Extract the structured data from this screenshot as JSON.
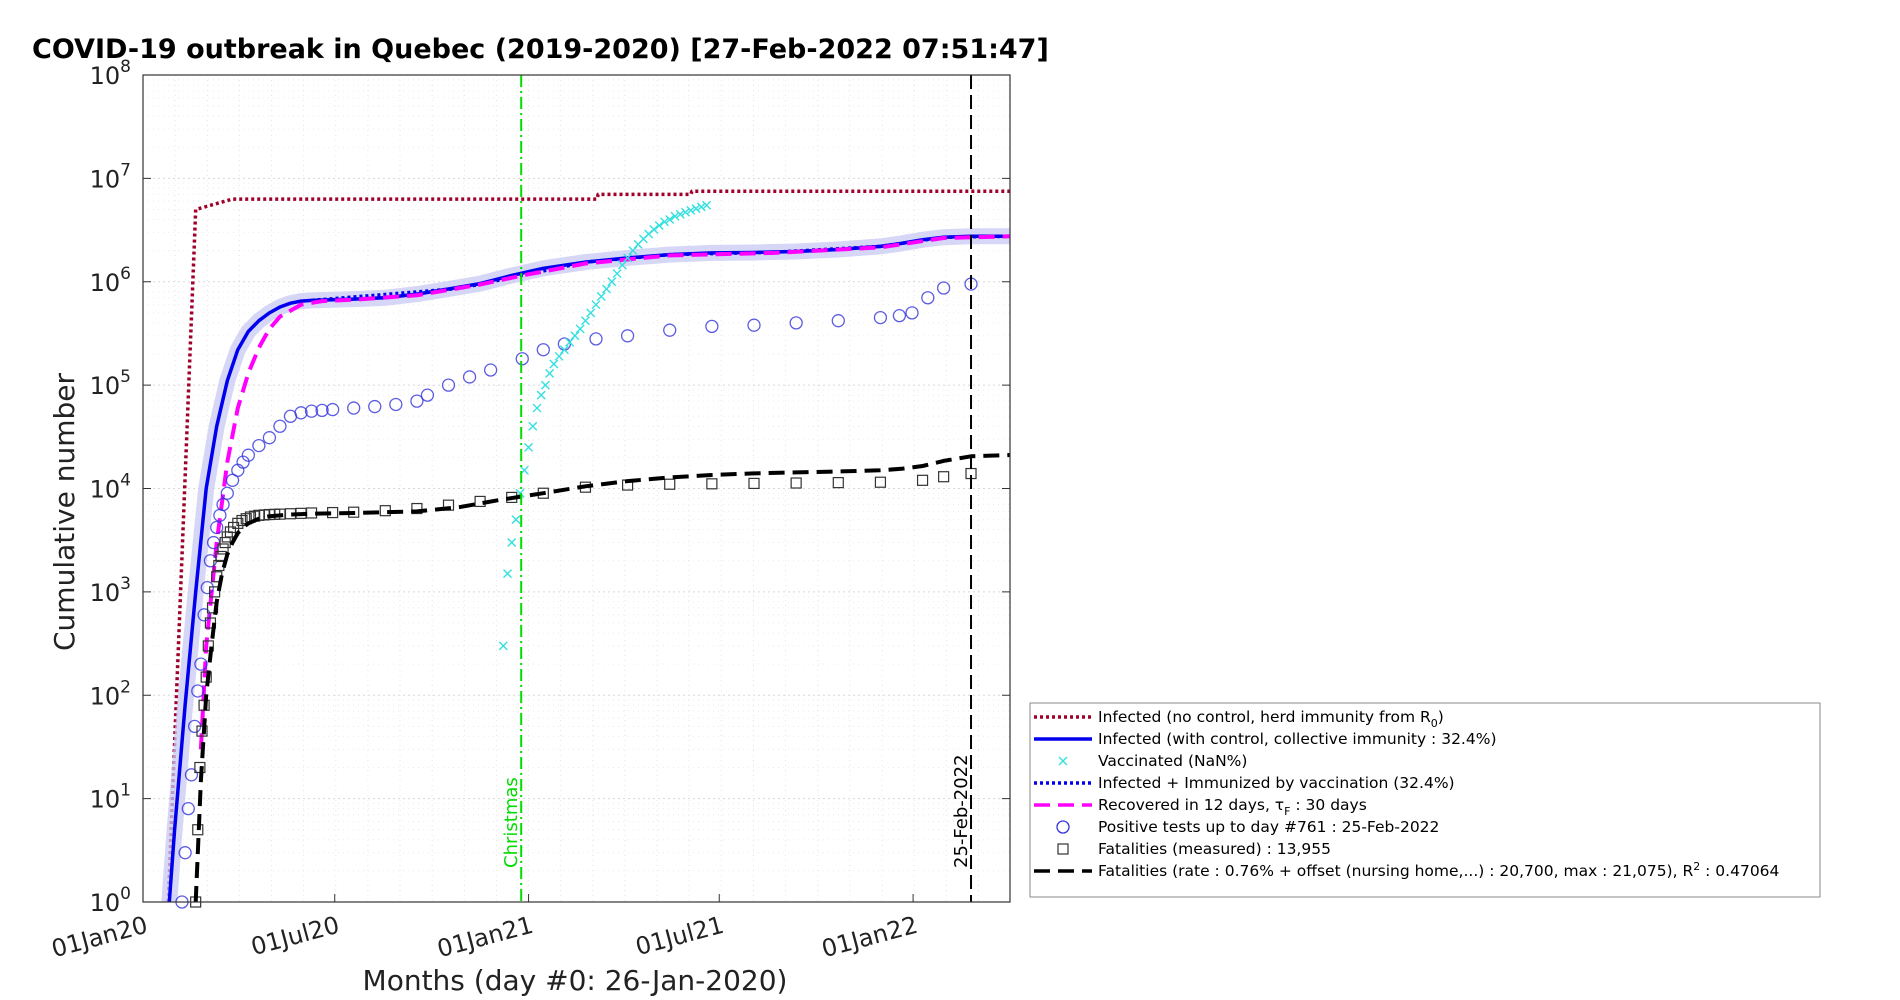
{
  "chart_data": {
    "type": "line",
    "title": "COVID-19 outbreak in Quebec (2019-2020) [27-Feb-2022 07:51:47]",
    "xlabel": "Months (day #0: 26-Jan-2020)",
    "ylabel": "Cumulative number",
    "y_scale": "log",
    "ylim": [
      1,
      100000000
    ],
    "xlim": [
      0,
      823
    ],
    "grid": true,
    "x_ticks": [
      {
        "day": 0,
        "label": "01Jan20"
      },
      {
        "day": 182,
        "label": "01Jul20"
      },
      {
        "day": 366,
        "label": "01Jan21"
      },
      {
        "day": 547,
        "label": "01Jul21"
      },
      {
        "day": 731,
        "label": "01Jan22"
      }
    ],
    "y_tick_base": "10",
    "y_ticks": [
      {
        "value": 1,
        "exponent": "0"
      },
      {
        "value": 10,
        "exponent": "1"
      },
      {
        "value": 100,
        "exponent": "2"
      },
      {
        "value": 1000,
        "exponent": "3"
      },
      {
        "value": 10000,
        "exponent": "4"
      },
      {
        "value": 100000,
        "exponent": "5"
      },
      {
        "value": 1000000,
        "exponent": "6"
      },
      {
        "value": 10000000,
        "exponent": "7"
      },
      {
        "value": 100000000,
        "exponent": "8"
      }
    ],
    "annotations": [
      {
        "text": "Christmas",
        "day": 359,
        "color": "#00dd00"
      },
      {
        "text": "25-Feb-2022",
        "day": 786,
        "color": "#000000"
      }
    ],
    "legend_position": "bottom-right",
    "legend": [
      {
        "key": "no_control",
        "prefix": "Infected (no control, herd immunity from R",
        "sub": "0",
        "suffix": ")",
        "color": "#a0002a",
        "style": "dotted"
      },
      {
        "key": "with_control",
        "text": "Infected (with control, collective immunity : 32.4%)",
        "color": "#0000ee",
        "style": "solid"
      },
      {
        "key": "vaccinated",
        "text": "Vaccinated (NaN%)",
        "color": "#33e0e0",
        "style": "x"
      },
      {
        "key": "immunized",
        "text": "Infected + Immunized by vaccination (32.4%)",
        "color": "#0000ee",
        "style": "dotted"
      },
      {
        "key": "recovered",
        "prefix": "Recovered in 12 days, τ",
        "sub": "F",
        "suffix": " : 30 days",
        "color": "#ff00ff",
        "style": "dashed"
      },
      {
        "key": "positive",
        "text": "Positive tests up to day #761 : 25-Feb-2022",
        "color": "#3333dd",
        "style": "circle"
      },
      {
        "key": "fatal_measured",
        "text": "Fatalities (measured) : 13,955",
        "color": "#333333",
        "style": "square"
      },
      {
        "key": "fatal_model",
        "prefix": "Fatalities (rate : 0.76% + offset (nursing home,...) : 20,700, max : 21,075), R",
        "sup": "2",
        "suffix": " : 0.47064",
        "color": "#000000",
        "style": "dashed"
      }
    ],
    "series": [
      {
        "key": "no_control",
        "color": "#a0002a",
        "style": "dotted",
        "x": [
          24,
          50,
          85,
          86,
          431,
          432,
          520,
          521,
          823
        ],
        "y": [
          1,
          5000000,
          6300000,
          6300000,
          6300000,
          7000000,
          7000000,
          7500000,
          7500000
        ]
      },
      {
        "key": "with_control",
        "color": "#0000ee",
        "style": "solid",
        "band": true,
        "x": [
          25,
          30,
          40,
          50,
          60,
          70,
          80,
          90,
          100,
          110,
          120,
          130,
          140,
          150,
          160,
          180,
          200,
          230,
          260,
          290,
          320,
          350,
          380,
          420,
          460,
          500,
          540,
          580,
          620,
          660,
          700,
          720,
          740,
          760,
          786,
          823
        ],
        "y": [
          1,
          5,
          80,
          1000,
          10000,
          40000,
          110000,
          220000,
          330000,
          420000,
          500000,
          570000,
          620000,
          650000,
          660000,
          670000,
          680000,
          700000,
          760000,
          850000,
          960000,
          1150000,
          1350000,
          1550000,
          1700000,
          1830000,
          1900000,
          1920000,
          1960000,
          2050000,
          2200000,
          2350000,
          2550000,
          2700000,
          2750000,
          2750000
        ]
      },
      {
        "key": "immunized",
        "color": "#0000ee",
        "style": "dotted",
        "x": [
          160,
          300,
          420,
          500,
          600,
          700,
          760,
          823
        ],
        "y": [
          660000,
          860000,
          1550000,
          1830000,
          1930000,
          2200000,
          2700000,
          2750000
        ]
      },
      {
        "key": "recovered",
        "color": "#ff00ff",
        "style": "dashed",
        "x": [
          55,
          60,
          70,
          80,
          90,
          100,
          110,
          120,
          130,
          150,
          170,
          200,
          260,
          320,
          360,
          420,
          500,
          600,
          700,
          760,
          823
        ],
        "y": [
          30,
          300,
          3000,
          18000,
          60000,
          130000,
          230000,
          350000,
          460000,
          600000,
          650000,
          670000,
          740000,
          940000,
          1150000,
          1500000,
          1800000,
          1900000,
          2150000,
          2650000,
          2750000
        ]
      },
      {
        "key": "positive",
        "color": "#3333dd",
        "style": "circle",
        "x": [
          37,
          40,
          43,
          46,
          49,
          52,
          55,
          58,
          61,
          64,
          67,
          70,
          73,
          76,
          80,
          85,
          90,
          95,
          100,
          110,
          120,
          130,
          140,
          150,
          160,
          170,
          180,
          200,
          220,
          240,
          260,
          270,
          290,
          310,
          330,
          360,
          380,
          400,
          430,
          460,
          500,
          540,
          580,
          620,
          660,
          700,
          718,
          730,
          745,
          760,
          786
        ],
        "y": [
          1,
          3,
          8,
          17,
          50,
          110,
          200,
          600,
          1100,
          2000,
          3000,
          4200,
          5500,
          7000,
          9000,
          12000,
          15000,
          18000,
          21000,
          26000,
          31000,
          40000,
          50000,
          54000,
          56000,
          57000,
          58000,
          60000,
          62000,
          65000,
          70000,
          80000,
          100000,
          120000,
          140000,
          180000,
          220000,
          250000,
          280000,
          300000,
          340000,
          370000,
          380000,
          400000,
          420000,
          450000,
          470000,
          500000,
          700000,
          870000,
          950000
        ]
      },
      {
        "key": "vaccinated",
        "color": "#33e0e0",
        "style": "x",
        "x": [
          342,
          346,
          350,
          354,
          358,
          362,
          366,
          370,
          374,
          378,
          382,
          386,
          390,
          395,
          400,
          405,
          410,
          415,
          420,
          425,
          430,
          435,
          440,
          445,
          450,
          455,
          460,
          465,
          470,
          475,
          480,
          485,
          490,
          495,
          500,
          505,
          510,
          515,
          520,
          525,
          530,
          535
        ],
        "y": [
          300,
          1500,
          3000,
          5000,
          9000,
          15000,
          25000,
          40000,
          60000,
          80000,
          100000,
          130000,
          160000,
          190000,
          220000,
          260000,
          300000,
          350000,
          420000,
          500000,
          600000,
          720000,
          850000,
          1000000,
          1200000,
          1450000,
          1700000,
          2000000,
          2300000,
          2600000,
          2900000,
          3200000,
          3500000,
          3800000,
          4000000,
          4300000,
          4500000,
          4700000,
          4900000,
          5100000,
          5300000,
          5500000
        ]
      },
      {
        "key": "fatal_measured",
        "color": "#333333",
        "style": "square",
        "x": [
          50,
          52,
          54,
          56,
          58,
          60,
          62,
          64,
          66,
          68,
          70,
          72,
          74,
          76,
          78,
          80,
          83,
          86,
          90,
          94,
          98,
          102,
          106,
          110,
          115,
          120,
          125,
          130,
          140,
          150,
          160,
          180,
          200,
          230,
          260,
          290,
          320,
          350,
          380,
          420,
          460,
          500,
          540,
          580,
          620,
          660,
          700,
          740,
          760,
          786
        ],
        "y": [
          1,
          5,
          20,
          45,
          80,
          150,
          300,
          500,
          700,
          1000,
          1400,
          1800,
          2200,
          2600,
          3000,
          3400,
          3800,
          4200,
          4600,
          4900,
          5100,
          5300,
          5400,
          5500,
          5550,
          5600,
          5620,
          5650,
          5700,
          5750,
          5800,
          5850,
          5900,
          6100,
          6400,
          6900,
          7500,
          8200,
          9000,
          10300,
          10800,
          11000,
          11100,
          11200,
          11300,
          11400,
          11500,
          12000,
          13000,
          13955
        ]
      },
      {
        "key": "fatal_model",
        "color": "#000000",
        "style": "dashed",
        "x": [
          50,
          55,
          60,
          65,
          70,
          75,
          80,
          85,
          90,
          95,
          100,
          110,
          120,
          140,
          160,
          200,
          260,
          300,
          340,
          380,
          420,
          460,
          500,
          540,
          580,
          620,
          660,
          700,
          720,
          740,
          760,
          786,
          823
        ],
        "y": [
          1,
          15,
          100,
          300,
          800,
          1500,
          2300,
          3000,
          3700,
          4200,
          4600,
          5100,
          5400,
          5600,
          5700,
          5800,
          6000,
          6600,
          7800,
          9000,
          10500,
          11800,
          12800,
          13500,
          14000,
          14300,
          14600,
          15000,
          15500,
          16500,
          18500,
          20500,
          21075
        ]
      }
    ]
  }
}
